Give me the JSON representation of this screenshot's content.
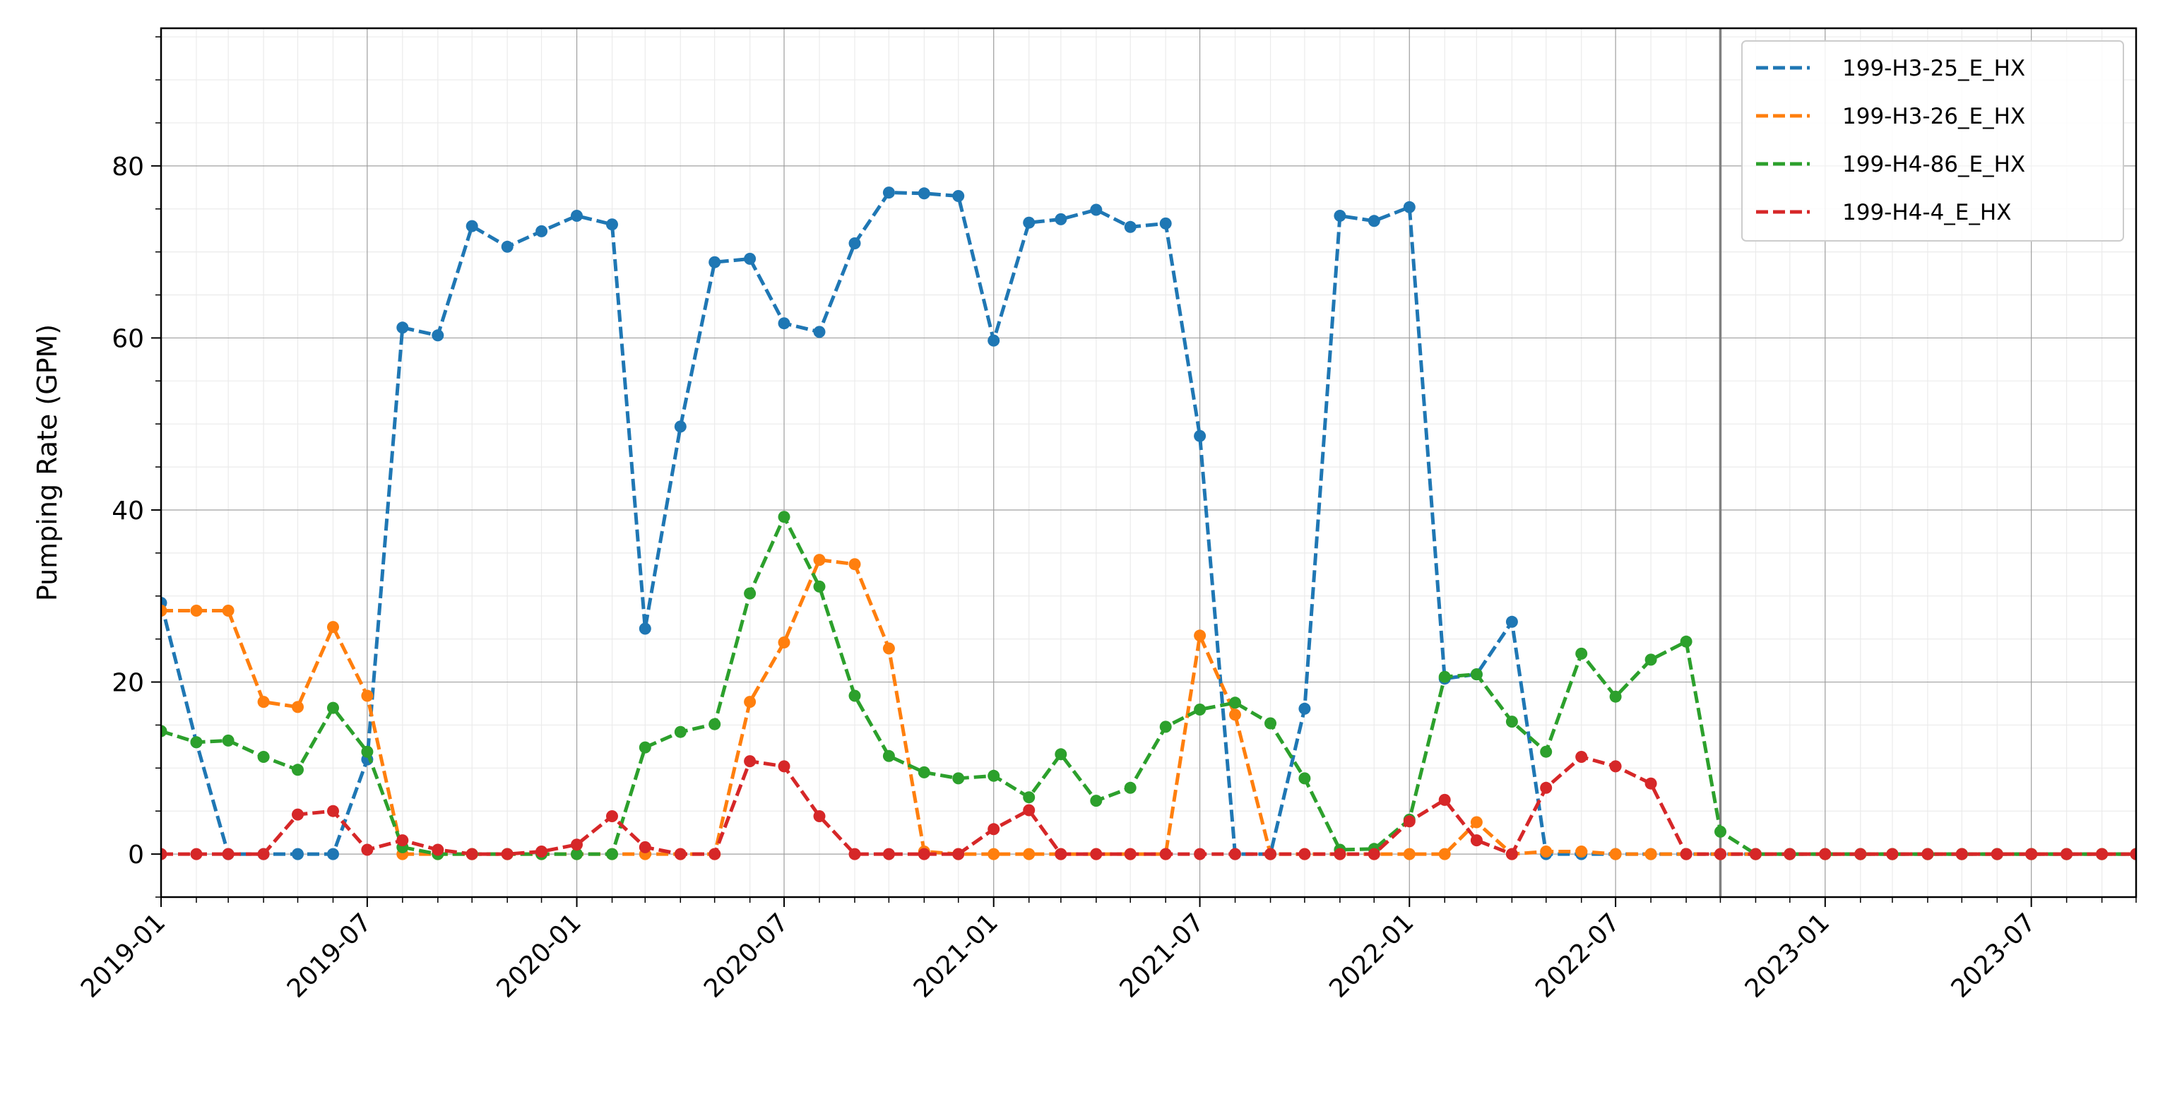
{
  "chart_data": {
    "type": "line",
    "title": "",
    "xlabel": "",
    "ylabel": "Pumping Rate (GPM)",
    "x": [
      "2019-01",
      "2019-02",
      "2019-03",
      "2019-04",
      "2019-05",
      "2019-06",
      "2019-07",
      "2019-08",
      "2019-09",
      "2019-10",
      "2019-11",
      "2019-12",
      "2020-01",
      "2020-02",
      "2020-03",
      "2020-04",
      "2020-05",
      "2020-06",
      "2020-07",
      "2020-08",
      "2020-09",
      "2020-10",
      "2020-11",
      "2020-12",
      "2021-01",
      "2021-02",
      "2021-03",
      "2021-04",
      "2021-05",
      "2021-06",
      "2021-07",
      "2021-08",
      "2021-09",
      "2021-10",
      "2021-11",
      "2021-12",
      "2022-01",
      "2022-02",
      "2022-03",
      "2022-04",
      "2022-05",
      "2022-06",
      "2022-07",
      "2022-08",
      "2022-09",
      "2022-10",
      "2022-11",
      "2022-12",
      "2023-01",
      "2023-02",
      "2023-03",
      "2023-04",
      "2023-05",
      "2023-06",
      "2023-07",
      "2023-08",
      "2023-09",
      "2023-10"
    ],
    "xlim": [
      "2019-01-01",
      "2023-10-01"
    ],
    "xticks": [
      "2019-01",
      "2019-07",
      "2020-01",
      "2020-07",
      "2021-01",
      "2021-07",
      "2022-01",
      "2022-07",
      "2023-01",
      "2023-07"
    ],
    "ylim": [
      -5,
      96
    ],
    "yticks": [
      0,
      20,
      40,
      60,
      80
    ],
    "grid": true,
    "legend_position": "top-right",
    "vline": "2022-10-01",
    "series": [
      {
        "name": "199-H3-25_E_HX",
        "color": "#1f77b4",
        "values": [
          29.2,
          13,
          0,
          0,
          0,
          0,
          11,
          61.2,
          60.3,
          73,
          70.6,
          72.4,
          74.2,
          73.2,
          26.2,
          49.7,
          68.8,
          69.2,
          61.7,
          60.7,
          71,
          76.9,
          76.8,
          76.5,
          59.7,
          73.4,
          73.8,
          74.9,
          72.9,
          73.3,
          48.6,
          0,
          0,
          16.9,
          74.2,
          73.6,
          75.2,
          20.4,
          20.9,
          27,
          0,
          0,
          0,
          0,
          0,
          0,
          0,
          0,
          0,
          0,
          0,
          0,
          0,
          0,
          0,
          0,
          0,
          0
        ]
      },
      {
        "name": "199-H3-26_E_HX",
        "color": "#ff7f0e",
        "values": [
          28.3,
          28.3,
          28.3,
          17.7,
          17.1,
          26.4,
          18.4,
          0,
          0,
          0,
          0,
          0,
          0,
          0,
          0,
          0,
          0,
          17.7,
          24.6,
          34.2,
          33.7,
          23.9,
          0.3,
          0,
          0,
          0,
          0,
          0,
          0,
          0,
          25.4,
          16.2,
          0,
          0,
          0,
          0,
          0,
          0,
          3.7,
          0,
          0.3,
          0.3,
          0,
          0,
          0,
          0,
          0,
          0,
          0,
          0,
          0,
          0,
          0,
          0,
          0,
          0,
          0,
          0
        ]
      },
      {
        "name": "199-H4-86_E_HX",
        "color": "#2ca02c",
        "values": [
          14.3,
          13,
          13.2,
          11.3,
          9.8,
          17,
          11.9,
          0.8,
          0,
          0,
          0,
          0,
          0,
          0,
          12.4,
          14.2,
          15.1,
          30.3,
          39.2,
          31.1,
          18.4,
          11.4,
          9.5,
          8.8,
          9.1,
          6.6,
          11.6,
          6.2,
          7.7,
          14.8,
          16.8,
          17.6,
          15.2,
          8.8,
          0.5,
          0.6,
          4,
          20.6,
          20.9,
          15.4,
          11.9,
          23.3,
          18.3,
          22.6,
          24.7,
          2.6,
          0,
          0,
          0,
          0,
          0,
          0,
          0,
          0,
          0,
          0,
          0,
          0
        ]
      },
      {
        "name": "199-H4-4_E_HX",
        "color": "#d62728",
        "values": [
          0,
          0,
          0,
          0,
          4.6,
          5,
          0.5,
          1.6,
          0.5,
          0,
          0,
          0.3,
          1.1,
          4.4,
          0.8,
          0,
          0,
          10.8,
          10.2,
          4.4,
          0,
          0,
          0,
          0,
          2.9,
          5.1,
          0,
          0,
          0,
          0,
          0,
          0,
          0,
          0,
          0,
          0,
          3.8,
          6.3,
          1.6,
          0,
          7.7,
          11.3,
          10.2,
          8.2,
          0,
          0,
          0,
          0,
          0,
          0,
          0,
          0,
          0,
          0,
          0,
          0,
          0,
          0
        ]
      }
    ]
  }
}
